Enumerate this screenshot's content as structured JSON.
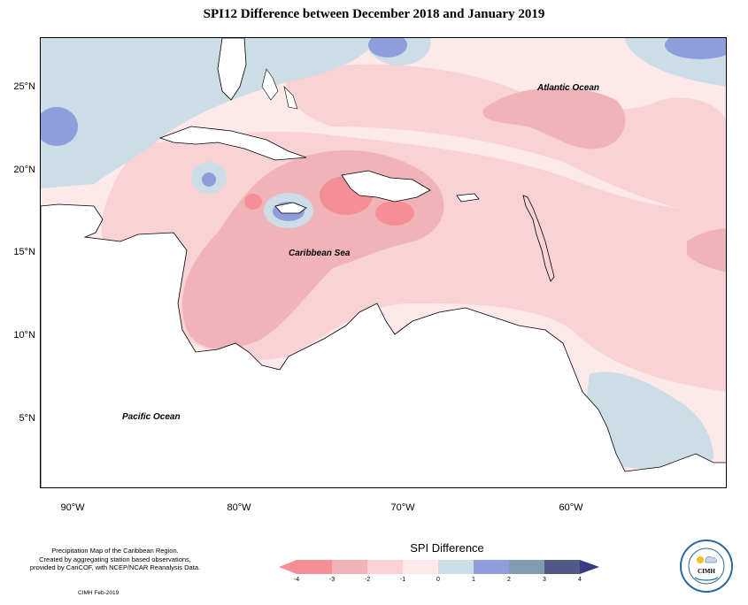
{
  "title": "SPI12 Difference between December 2018 and January 2019",
  "map": {
    "lat_labels": [
      "25°N",
      "20°N",
      "15°N",
      "10°N",
      "5°N"
    ],
    "lon_labels": [
      "90°W",
      "80°W",
      "70°W",
      "60°W"
    ],
    "ocean_labels": {
      "atlantic": "Atlantic Ocean",
      "caribbean": "Caribbean Sea",
      "pacific": "Pacific Ocean"
    }
  },
  "caption": {
    "line1": "Precipitation Map of the Caribbean Region.",
    "line2": "Created by aggregating station based observations,",
    "line3": "provided by CariCOF, with NCEP/NCAR Reanalysis Data.",
    "credit": "CIMH Feb-2019"
  },
  "legend": {
    "title": "SPI Difference",
    "ticks": [
      "-4",
      "-3",
      "-2",
      "-1",
      "0",
      "1",
      "2",
      "3",
      "4"
    ],
    "colors": [
      "#f58f95",
      "#f0b4b8",
      "#f9d2d6",
      "#fde8ea",
      "#ccdde5",
      "#8e9edc",
      "#7f9cb1",
      "#515a85",
      "#3a3a84"
    ]
  },
  "logo": {
    "text": "CIMH",
    "ring_text": "Caribbean Institute for Meteorology and Hydrology"
  }
}
